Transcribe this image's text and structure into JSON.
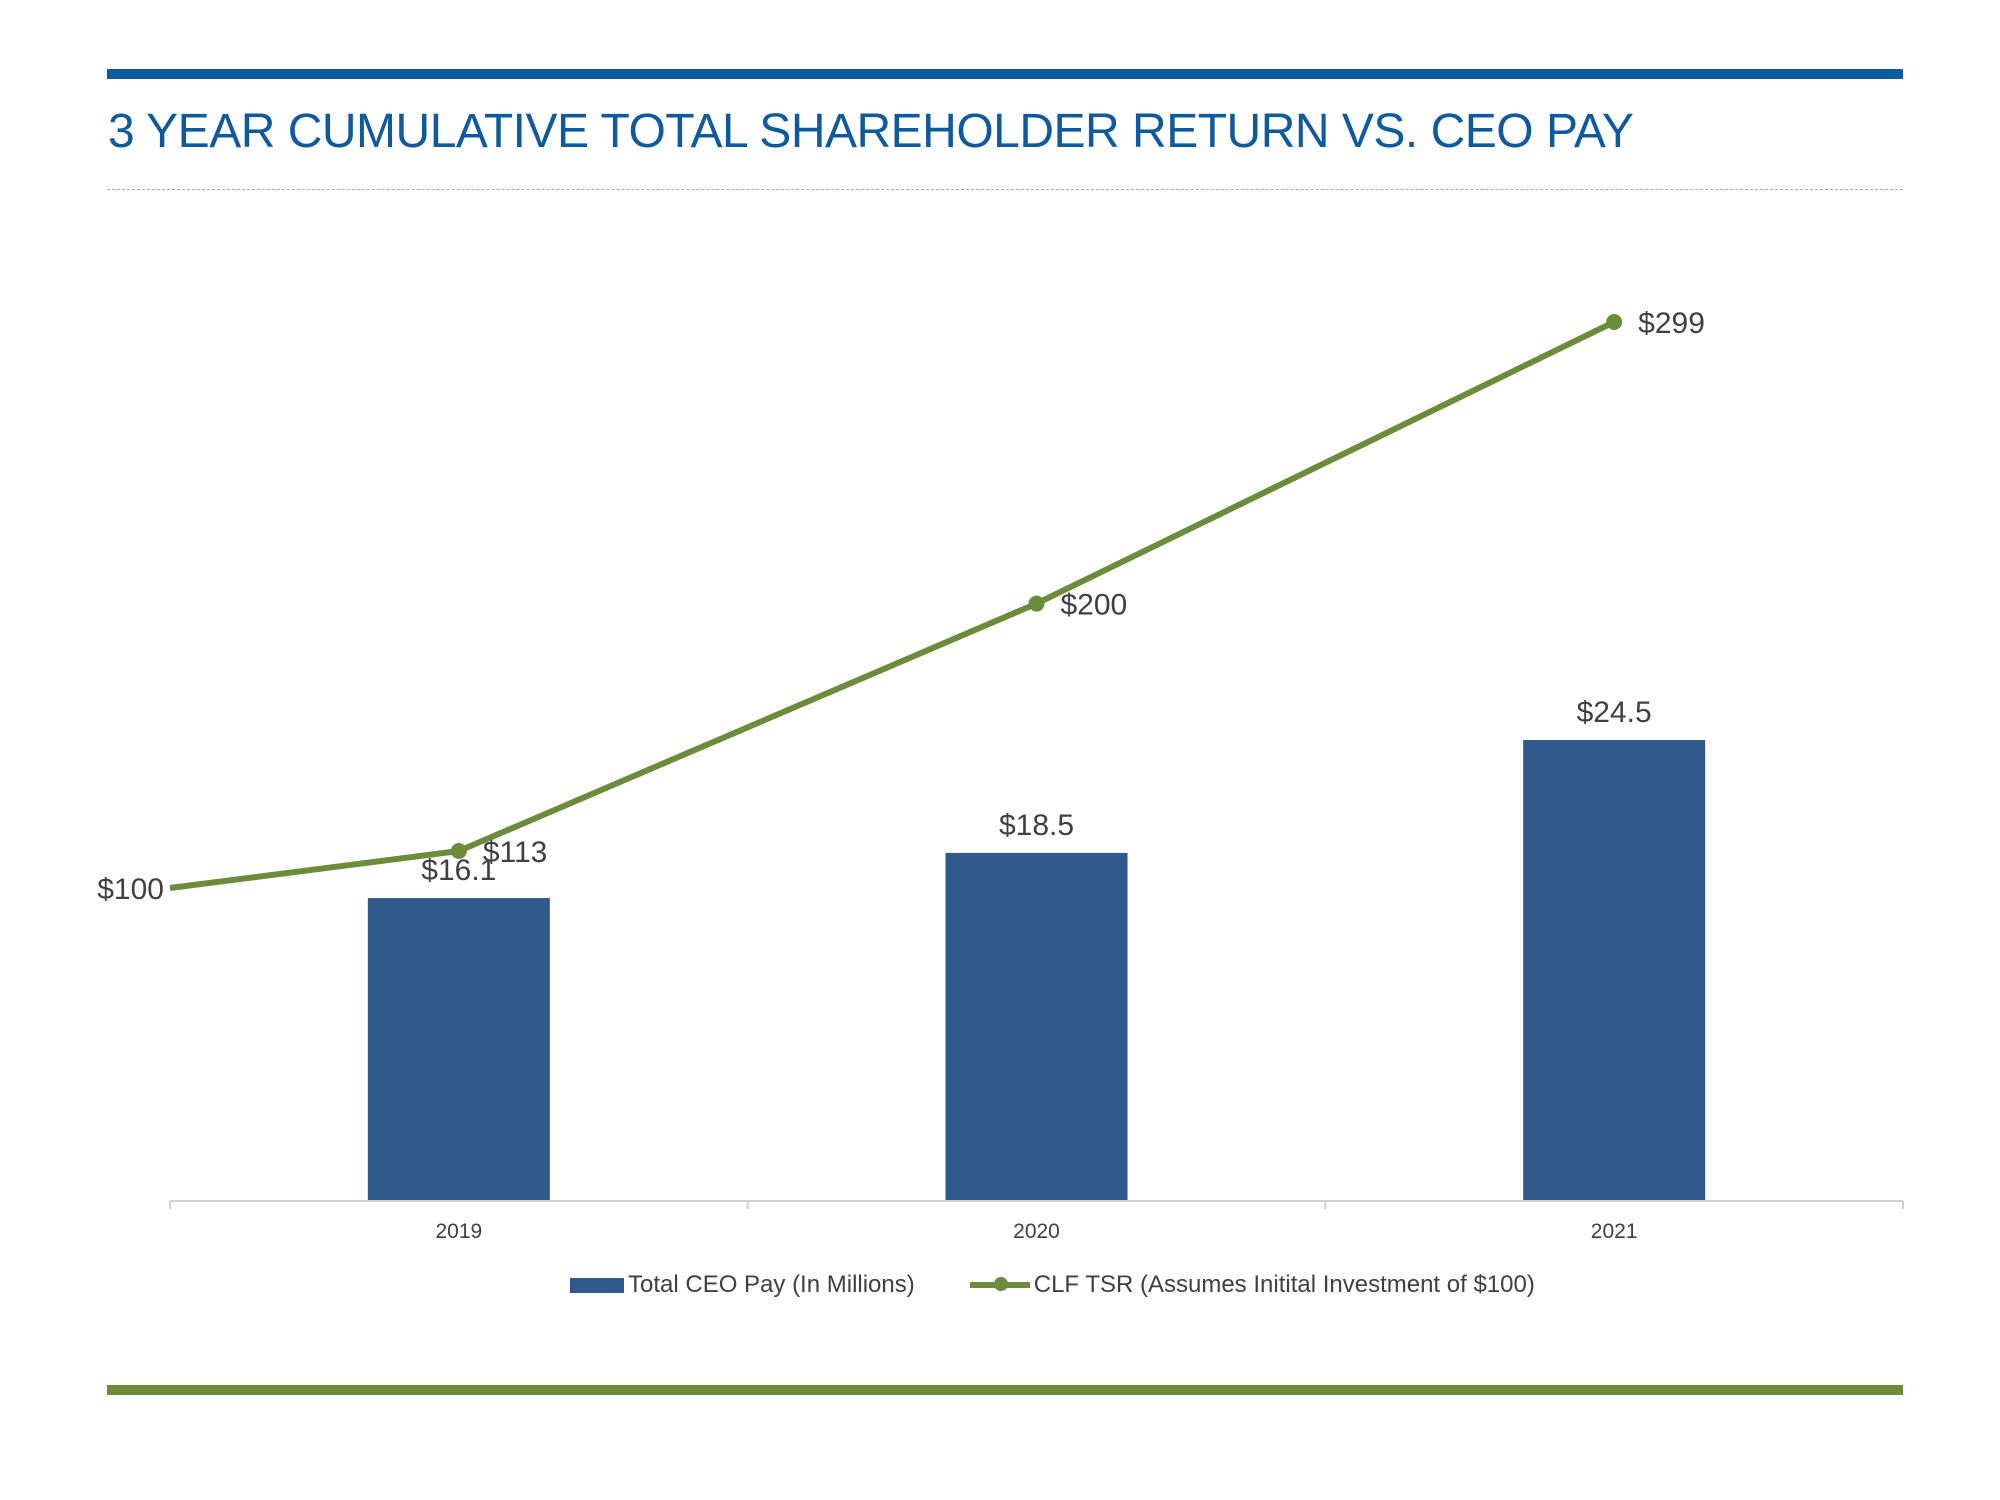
{
  "page": {
    "title": "3 YEAR CUMULATIVE TOTAL SHAREHOLDER RETURN VS. CEO PAY"
  },
  "colors": {
    "title": "#0f5a9c",
    "top_rule": "#0f5a9c",
    "bottom_rule": "#6b8c3a",
    "bar": "#2f5a8b",
    "line": "#6b8c3a",
    "text": "#404040",
    "axis": "#d0d0d0"
  },
  "chart_data": {
    "type": "bar",
    "title": "3 YEAR CUMULATIVE TOTAL SHAREHOLDER RETURN VS. CEO PAY",
    "categories": [
      "2019",
      "2020",
      "2021"
    ],
    "series": [
      {
        "name": "Total CEO Pay (In Millions)",
        "type": "bar",
        "values": [
          16.1,
          18.5,
          24.5
        ],
        "labels": [
          "$16.1",
          "$18.5",
          "$24.5"
        ]
      },
      {
        "name": "CLF TSR (Assumes Initital Investment of $100)",
        "type": "line",
        "start_value": 100,
        "start_label": "$100",
        "values": [
          113,
          200,
          299
        ],
        "labels": [
          "$113",
          "$200",
          "$299"
        ]
      }
    ],
    "bar_ylim": [
      0,
      50
    ],
    "line_ylim": [
      -60,
      320
    ],
    "legend_position": "bottom",
    "grid": false,
    "xlabel": "",
    "ylabel": ""
  }
}
